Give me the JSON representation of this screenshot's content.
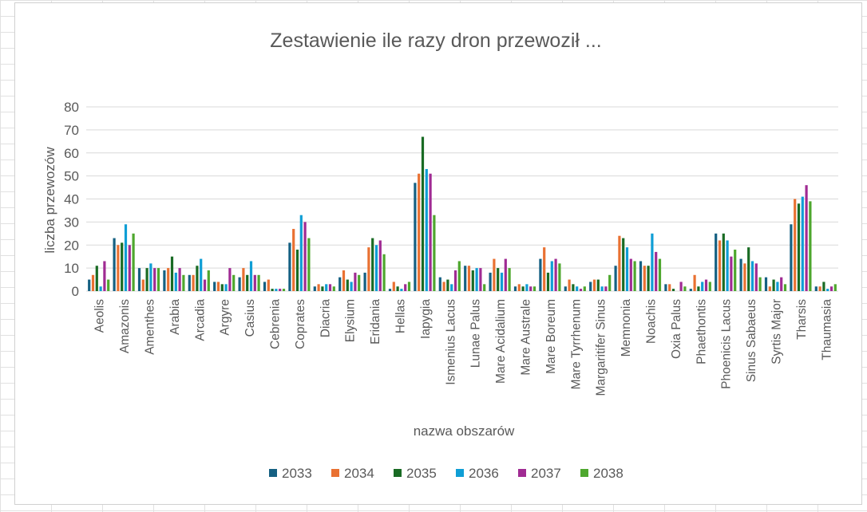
{
  "chart_data": {
    "type": "bar",
    "title": "Zestawienie ile razy dron przewoził ...",
    "xlabel": "nazwa obszarów",
    "ylabel": "liczba przewozów",
    "ylim": [
      0,
      80
    ],
    "yticks": [
      0,
      10,
      20,
      30,
      40,
      50,
      60,
      70,
      80
    ],
    "grid": true,
    "legend_position": "bottom",
    "categories": [
      "Aeolis",
      "Amazonis",
      "Amenthes",
      "Arabia",
      "Arcadia",
      "Argyre",
      "Casius",
      "Cebrenia",
      "Coprates",
      "Diacria",
      "Elysium",
      "Eridania",
      "Hellas",
      "Iapygia",
      "Ismenius Lacus",
      "Lunae Palus",
      "Mare Acidalium",
      "Mare Australe",
      "Mare Boreum",
      "Mare Tyrrhenum",
      "Margaritifer Sinus",
      "Memnonia",
      "Noachis",
      "Oxia Palus",
      "Phaethontis",
      "Phoenicis Lacus",
      "Sinus Sabaeus",
      "Syrtis Major",
      "Tharsis",
      "Thaumasia"
    ],
    "series": [
      {
        "name": "2033",
        "color": "#156082",
        "values": [
          5,
          23,
          10,
          9,
          7,
          4,
          6,
          4,
          21,
          2,
          6,
          8,
          1,
          47,
          6,
          11,
          8,
          2,
          14,
          2,
          4,
          11,
          13,
          3,
          1,
          25,
          14,
          6,
          29,
          2
        ]
      },
      {
        "name": "2034",
        "color": "#E97132",
        "values": [
          7,
          20,
          5,
          10,
          7,
          4,
          10,
          5,
          27,
          3,
          9,
          19,
          4,
          51,
          4,
          11,
          14,
          3,
          19,
          5,
          5,
          24,
          11,
          3,
          7,
          22,
          12,
          2,
          40,
          2
        ]
      },
      {
        "name": "2035",
        "color": "#196B24",
        "values": [
          11,
          21,
          10,
          15,
          11,
          3,
          7,
          1,
          18,
          2,
          5,
          23,
          2,
          67,
          5,
          9,
          10,
          2,
          8,
          3,
          5,
          23,
          11,
          1,
          2,
          25,
          19,
          5,
          38,
          4
        ]
      },
      {
        "name": "2036",
        "color": "#0F9ED5",
        "values": [
          2,
          29,
          12,
          8,
          14,
          3,
          13,
          1,
          33,
          3,
          4,
          20,
          1,
          53,
          3,
          10,
          8,
          3,
          13,
          2,
          2,
          19,
          25,
          0,
          4,
          22,
          13,
          4,
          41,
          1
        ]
      },
      {
        "name": "2037",
        "color": "#A02B93",
        "values": [
          13,
          20,
          10,
          10,
          5,
          10,
          7,
          1,
          30,
          3,
          8,
          22,
          3,
          51,
          9,
          10,
          14,
          2,
          14,
          1,
          2,
          14,
          17,
          4,
          5,
          15,
          12,
          6,
          46,
          2
        ]
      },
      {
        "name": "2038",
        "color": "#4EA72E",
        "values": [
          5,
          25,
          10,
          7,
          9,
          7,
          7,
          1,
          23,
          2,
          7,
          16,
          4,
          33,
          13,
          3,
          10,
          2,
          12,
          2,
          7,
          13,
          14,
          2,
          4,
          18,
          6,
          3,
          39,
          3
        ]
      }
    ]
  }
}
